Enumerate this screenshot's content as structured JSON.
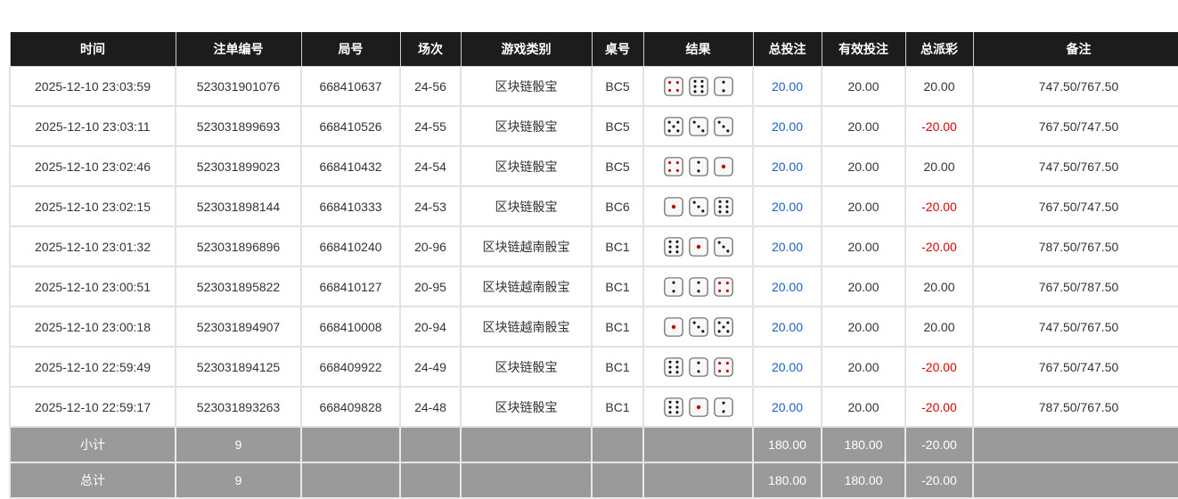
{
  "headers": [
    "时间",
    "注单编号",
    "局号",
    "场次",
    "游戏类别",
    "桌号",
    "结果",
    "总投注",
    "有效投注",
    "总派彩",
    "备注"
  ],
  "rows": [
    {
      "time": "2025-12-10 23:03:59",
      "bet_id": "523031901076",
      "round": "668410637",
      "session": "24-56",
      "game": "区块链骰宝",
      "table": "BC5",
      "dice": [
        4,
        6,
        2
      ],
      "total_bet": "20.00",
      "valid_bet": "20.00",
      "payout": "20.00",
      "note": "747.50/767.50"
    },
    {
      "time": "2025-12-10 23:03:11",
      "bet_id": "523031899693",
      "round": "668410526",
      "session": "24-55",
      "game": "区块链骰宝",
      "table": "BC5",
      "dice": [
        5,
        3,
        3
      ],
      "total_bet": "20.00",
      "valid_bet": "20.00",
      "payout": "-20.00",
      "note": "767.50/747.50"
    },
    {
      "time": "2025-12-10 23:02:46",
      "bet_id": "523031899023",
      "round": "668410432",
      "session": "24-54",
      "game": "区块链骰宝",
      "table": "BC5",
      "dice": [
        4,
        2,
        1
      ],
      "total_bet": "20.00",
      "valid_bet": "20.00",
      "payout": "20.00",
      "note": "747.50/767.50"
    },
    {
      "time": "2025-12-10 23:02:15",
      "bet_id": "523031898144",
      "round": "668410333",
      "session": "24-53",
      "game": "区块链骰宝",
      "table": "BC6",
      "dice": [
        1,
        3,
        6
      ],
      "total_bet": "20.00",
      "valid_bet": "20.00",
      "payout": "-20.00",
      "note": "767.50/747.50"
    },
    {
      "time": "2025-12-10 23:01:32",
      "bet_id": "523031896896",
      "round": "668410240",
      "session": "20-96",
      "game": "区块链越南骰宝",
      "table": "BC1",
      "dice": [
        6,
        1,
        3
      ],
      "total_bet": "20.00",
      "valid_bet": "20.00",
      "payout": "-20.00",
      "note": "787.50/767.50"
    },
    {
      "time": "2025-12-10 23:00:51",
      "bet_id": "523031895822",
      "round": "668410127",
      "session": "20-95",
      "game": "区块链越南骰宝",
      "table": "BC1",
      "dice": [
        2,
        2,
        4
      ],
      "total_bet": "20.00",
      "valid_bet": "20.00",
      "payout": "20.00",
      "note": "767.50/787.50"
    },
    {
      "time": "2025-12-10 23:00:18",
      "bet_id": "523031894907",
      "round": "668410008",
      "session": "20-94",
      "game": "区块链越南骰宝",
      "table": "BC1",
      "dice": [
        1,
        3,
        5
      ],
      "total_bet": "20.00",
      "valid_bet": "20.00",
      "payout": "20.00",
      "note": "747.50/767.50"
    },
    {
      "time": "2025-12-10 22:59:49",
      "bet_id": "523031894125",
      "round": "668409922",
      "session": "24-49",
      "game": "区块链骰宝",
      "table": "BC1",
      "dice": [
        6,
        2,
        4
      ],
      "total_bet": "20.00",
      "valid_bet": "20.00",
      "payout": "-20.00",
      "note": "767.50/747.50"
    },
    {
      "time": "2025-12-10 22:59:17",
      "bet_id": "523031893263",
      "round": "668409828",
      "session": "24-48",
      "game": "区块链骰宝",
      "table": "BC1",
      "dice": [
        6,
        1,
        2
      ],
      "total_bet": "20.00",
      "valid_bet": "20.00",
      "payout": "-20.00",
      "note": "787.50/767.50"
    }
  ],
  "summary": [
    {
      "label": "小计",
      "count": "9",
      "total_bet": "180.00",
      "valid_bet": "180.00",
      "payout": "-20.00"
    },
    {
      "label": "总计",
      "count": "9",
      "total_bet": "180.00",
      "valid_bet": "180.00",
      "payout": "-20.00"
    }
  ],
  "colors": {
    "header_bg": "#1c1c1c",
    "summary_bg": "#9a9a9a",
    "bet_link": "#1a5fd1",
    "negative": "#e00000",
    "red_pip": "#c00000"
  }
}
